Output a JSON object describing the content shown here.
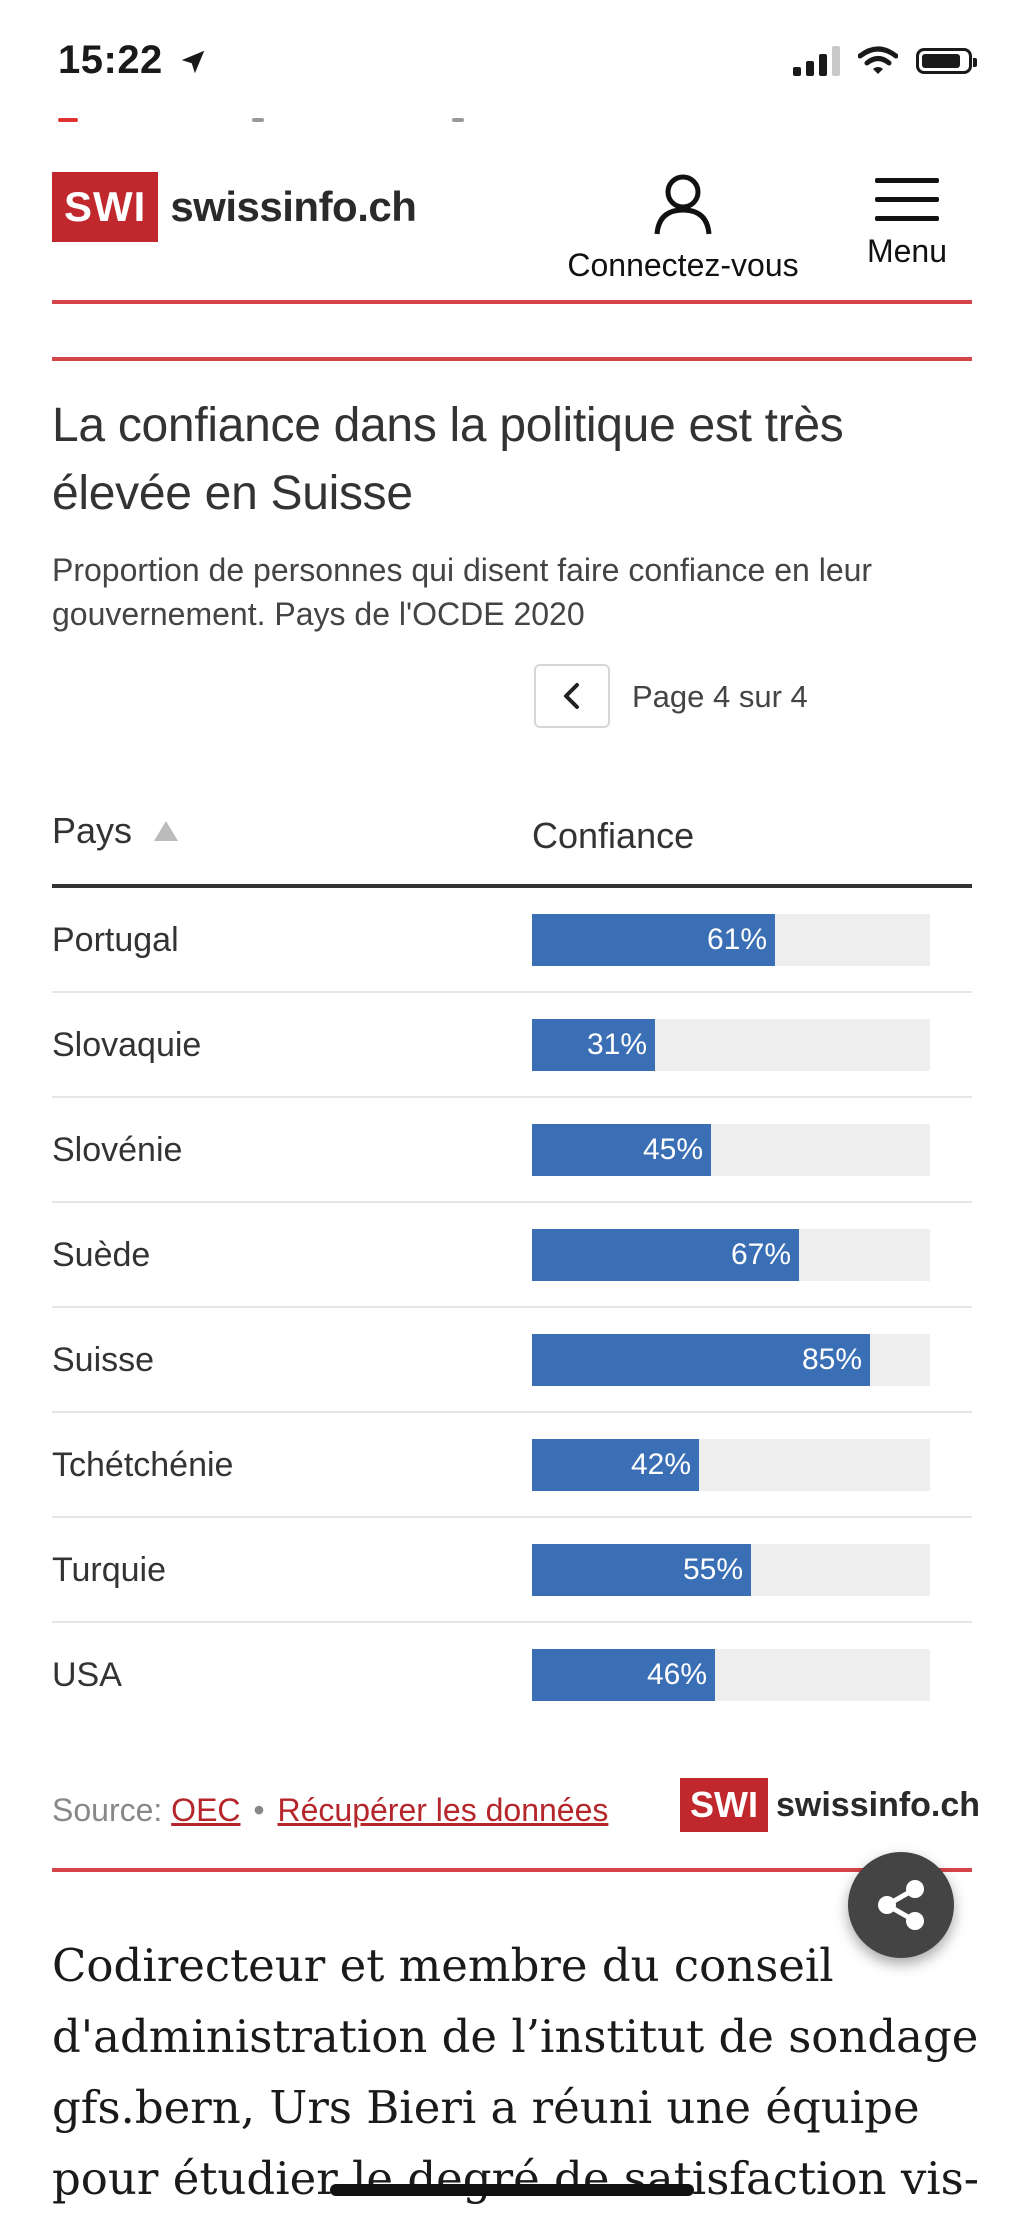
{
  "status_bar": {
    "time": "15:22"
  },
  "header": {
    "logo_box": "SWI",
    "logo_wordmark": "swissinfo.ch",
    "login_label": "Connectez-vous",
    "menu_label": "Menu"
  },
  "chart_header": {
    "title": "La confiance dans la politique est très élevée en Suisse",
    "subtitle": "Proportion de personnes qui disent faire confiance en leur gouvernement. Pays de l'OCDE 2020"
  },
  "pagination": {
    "label": "Page 4 sur 4"
  },
  "table": {
    "col_country": "Pays",
    "col_value": "Confiance"
  },
  "chart_data": {
    "type": "bar",
    "title": "La confiance dans la politique est très élevée en Suisse",
    "subtitle": "Proportion de personnes qui disent faire confiance en leur gouvernement. Pays de l'OCDE 2020",
    "categories": [
      "Portugal",
      "Slovaquie",
      "Slovénie",
      "Suède",
      "Suisse",
      "Tchétchénie",
      "Turquie",
      "USA"
    ],
    "values": [
      61,
      31,
      45,
      67,
      85,
      42,
      55,
      46
    ],
    "value_labels": [
      "61%",
      "31%",
      "45%",
      "67%",
      "85%",
      "42%",
      "55%",
      "46%"
    ],
    "xlim": [
      0,
      100
    ],
    "orientation": "horizontal",
    "bar_color": "#3a6eb5"
  },
  "footer": {
    "source_prefix": "Source: ",
    "source_link": "OEC",
    "separator": "•",
    "download_link": "Récupérer les données",
    "logo_box": "SWI",
    "logo_wordmark": "swissinfo.ch"
  },
  "article": {
    "text": "Codirecteur et membre du conseil d'administration de l’institut de sondage gfs.bern, Urs Bieri a réuni une équipe pour étudier le degré de satisfaction vis-"
  },
  "colors": {
    "brand_red": "#c0282d",
    "bar_blue": "#3a6eb5",
    "track_grey": "#eeeeee"
  },
  "icons": {
    "login": "user-icon",
    "menu": "hamburger-icon",
    "share": "share-icon",
    "prev": "chevron-left-icon"
  }
}
